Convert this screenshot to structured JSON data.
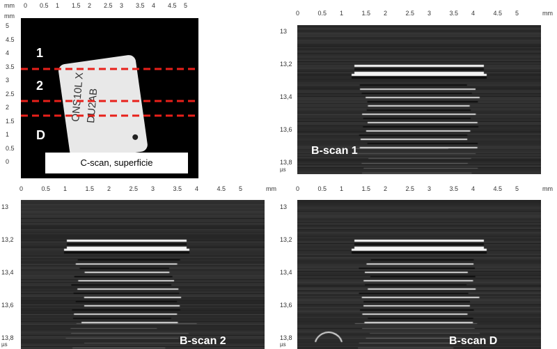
{
  "units": {
    "mm": "mm",
    "us": "µs"
  },
  "x_ticks": [
    "0",
    "0.5",
    "1",
    "1.5",
    "2",
    "2.5",
    "3",
    "3.5",
    "4",
    "4.5",
    "5"
  ],
  "cscan": {
    "y_ticks": [
      "5",
      "4.5",
      "4",
      "3.5",
      "3",
      "2.5",
      "2",
      "1.5",
      "1",
      "0.5",
      "0"
    ],
    "caption": "C-scan, superficie",
    "line_labels": [
      "1",
      "2",
      "D"
    ],
    "chip_text_line1": "ONS10L X",
    "chip_text_line2": "DU2AB"
  },
  "bscans": [
    {
      "label": "B-scan 1",
      "y_ticks": [
        "13",
        "13,2",
        "13,4",
        "13,6",
        "13,8"
      ]
    },
    {
      "label": "B-scan 2",
      "y_ticks": [
        "13",
        "13,2",
        "13,4",
        "13,6",
        "13,8"
      ]
    },
    {
      "label": "B-scan D",
      "y_ticks": [
        "13",
        "13,2",
        "13,4",
        "13,6",
        "13,8"
      ]
    }
  ],
  "colors": {
    "scan_line": "#e8201a",
    "bscan_bg": "#2a2a2a",
    "cscan_bg": "#000000"
  }
}
